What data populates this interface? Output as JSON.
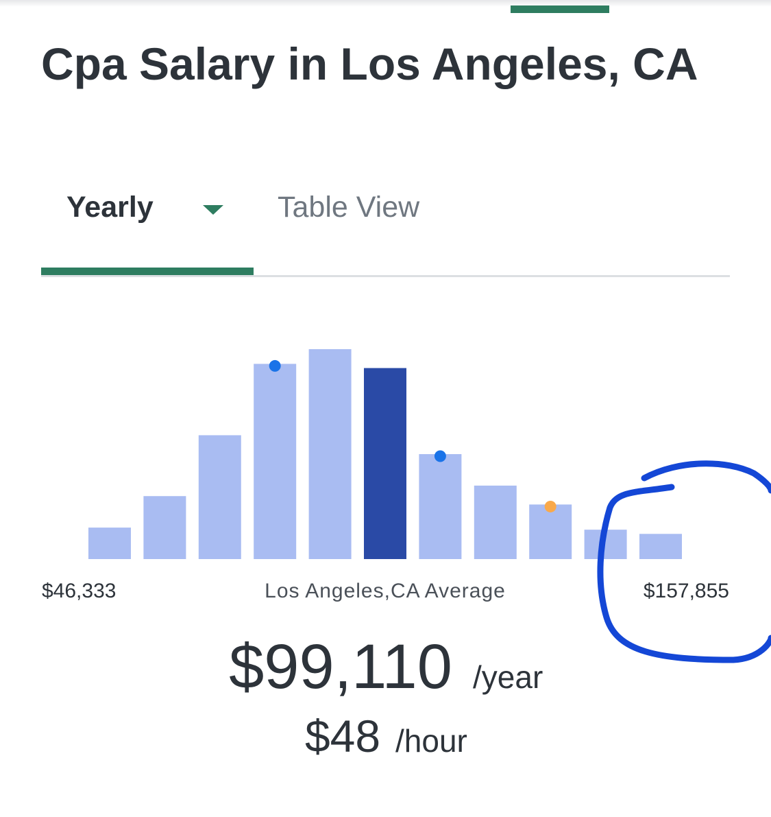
{
  "header": {
    "title": "Cpa Salary in Los Angeles, CA"
  },
  "tabs": [
    "Yearly",
    "Table View"
  ],
  "chart_data": {
    "type": "bar",
    "categories": [
      null,
      null,
      null,
      null,
      null,
      null,
      null,
      null,
      null,
      null,
      null
    ],
    "values": [
      15,
      30,
      59,
      93,
      100,
      91,
      50,
      35,
      26,
      14,
      12
    ],
    "ylim": [
      0,
      100
    ],
    "color": "#a9bcf2",
    "highlight": {
      "index": 5,
      "color": "#2a4aa6"
    },
    "dots": [
      {
        "index": 3,
        "color": "#1a73e8"
      },
      {
        "index": 6,
        "color": "#1a73e8"
      },
      {
        "index": 8,
        "color": "#f9a94b"
      }
    ],
    "xticks": [
      {
        "value": 46333,
        "label": "$46,333"
      },
      {
        "value": 157855,
        "label": "$157,855"
      }
    ],
    "xlabel": "Los Angeles,CA Average"
  },
  "summary": {
    "yearly": "$99,110",
    "yearly_unit": "/year",
    "hourly": "$48",
    "hourly_unit": "/hour"
  }
}
